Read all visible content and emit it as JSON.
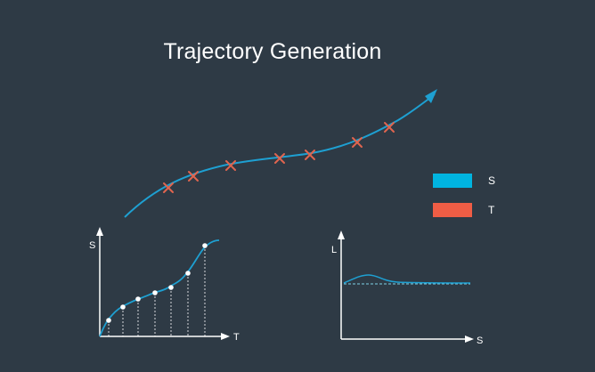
{
  "title": "Trajectory Generation",
  "legend": {
    "items": [
      {
        "label": "S",
        "color": "#00b4e0"
      },
      {
        "label": "T",
        "color": "#ef5d45"
      }
    ]
  },
  "colors": {
    "background": "#2e3a45",
    "trajectory": "#1ea0d2",
    "waypoint_marker": "#e0654f",
    "axis": "#ffffff",
    "plot_curve": "#1ea0d2",
    "reference_line": "#7fd1e6"
  },
  "s_t_plot": {
    "y_axis_label": "S",
    "x_axis_label": "T"
  },
  "l_s_plot": {
    "y_axis_label": "L",
    "x_axis_label": "S"
  }
}
